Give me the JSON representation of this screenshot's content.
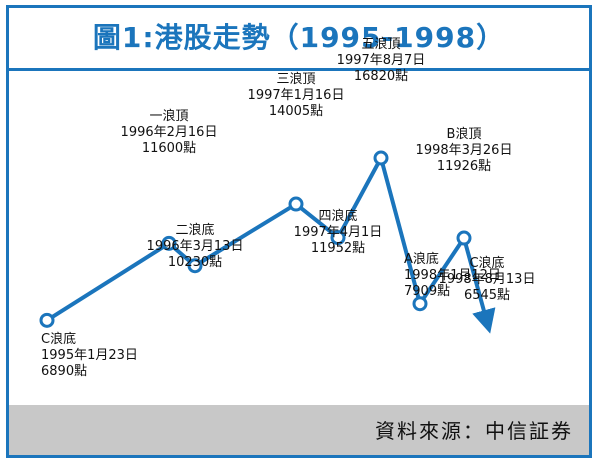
{
  "colors": {
    "accent": "#1b75bc",
    "line": "#1b75bc",
    "footer_bg": "#c8c8c8",
    "text": "#111111"
  },
  "header": {
    "title": "圖1:港股走勢（1995-1998）"
  },
  "footer": {
    "source": "資料來源：中信証券"
  },
  "chart_data": {
    "type": "line",
    "title": "圖1:港股走勢（1995-1998）",
    "xlabel": "",
    "ylabel": "",
    "grid": false,
    "legend": "none",
    "points": [
      {
        "wave": "C浪底",
        "date": "1995年1月23日",
        "value": 6890,
        "value_label": "6890點"
      },
      {
        "wave": "一浪頂",
        "date": "1996年2月16日",
        "value": 11600,
        "value_label": "11600點"
      },
      {
        "wave": "二浪底",
        "date": "1996年3月13日",
        "value": 10230,
        "value_label": "10230點"
      },
      {
        "wave": "三浪頂",
        "date": "1997年1月16日",
        "value": 14005,
        "value_label": "14005點"
      },
      {
        "wave": "四浪底",
        "date": "1997年4月1日",
        "value": 11952,
        "value_label": "11952點"
      },
      {
        "wave": "五浪頂",
        "date": "1997年8月7日",
        "value": 16820,
        "value_label": "16820點"
      },
      {
        "wave": "A浪底",
        "date": "1998年1月12日",
        "value": 7909,
        "value_label": "7909點"
      },
      {
        "wave": "B浪頂",
        "date": "1998年3月26日",
        "value": 11926,
        "value_label": "11926點"
      },
      {
        "wave": "C浪底",
        "date": "1998年8月13日",
        "value": 6545,
        "value_label": "6545點"
      }
    ]
  }
}
